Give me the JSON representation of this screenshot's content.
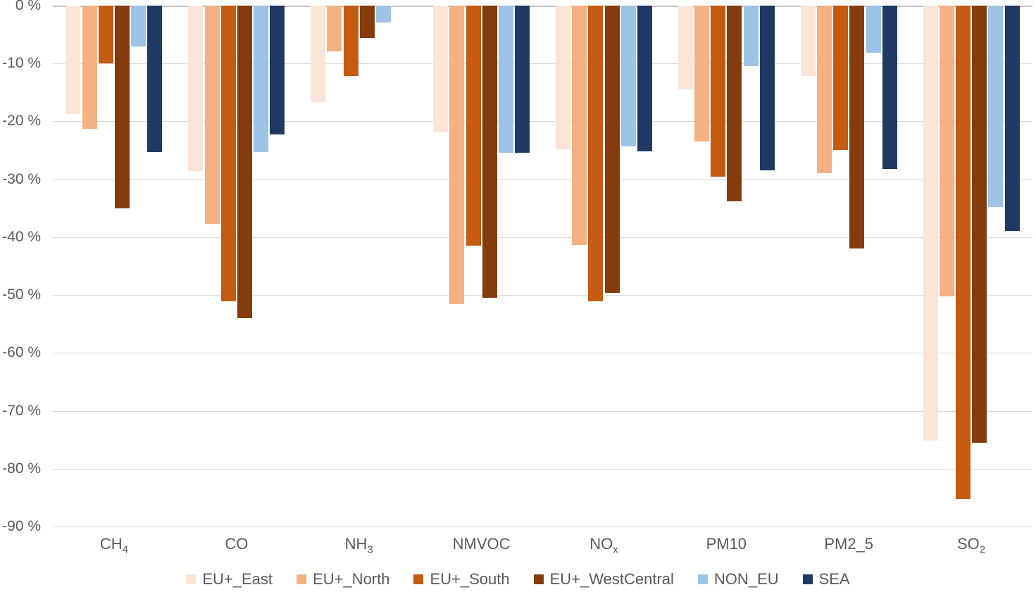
{
  "chart_data": {
    "type": "bar",
    "title": "",
    "xlabel": "",
    "ylabel": "",
    "ylim": [
      -90,
      0
    ],
    "grid": true,
    "legend_position": "bottom-center",
    "y_ticks": [
      {
        "value": 0,
        "label": "0 %"
      },
      {
        "value": -10,
        "label": "-10 %"
      },
      {
        "value": -20,
        "label": "-20 %"
      },
      {
        "value": -30,
        "label": "-30 %"
      },
      {
        "value": -40,
        "label": "-40 %"
      },
      {
        "value": -50,
        "label": "-50 %"
      },
      {
        "value": -60,
        "label": "-60 %"
      },
      {
        "value": -70,
        "label": "-70 %"
      },
      {
        "value": -80,
        "label": "-80 %"
      },
      {
        "value": -90,
        "label": "-90 %"
      }
    ],
    "categories": [
      {
        "label": "CH",
        "sub": "4"
      },
      {
        "label": "CO",
        "sub": ""
      },
      {
        "label": "NH",
        "sub": "3"
      },
      {
        "label": "NMVOC",
        "sub": ""
      },
      {
        "label": "NO",
        "sub": "x"
      },
      {
        "label": "PM10",
        "sub": ""
      },
      {
        "label": "PM2_5",
        "sub": ""
      },
      {
        "label": "SO",
        "sub": "2"
      }
    ],
    "series": [
      {
        "name": "EU+_East",
        "color": "#fbe5d6",
        "values": [
          -18.7,
          -28.6,
          -16.7,
          -21.9,
          -24.8,
          -14.5,
          -12.2,
          -75.2
        ]
      },
      {
        "name": "EU+_North",
        "color": "#f4b183",
        "values": [
          -21.3,
          -37.7,
          -7.9,
          -51.6,
          -41.4,
          -23.5,
          -28.9,
          -50.2
        ]
      },
      {
        "name": "EU+_South",
        "color": "#c55a11",
        "values": [
          -10.0,
          -51.1,
          -12.2,
          -41.5,
          -51.1,
          -29.5,
          -24.9,
          -85.2
        ]
      },
      {
        "name": "EU+_WestCentral",
        "color": "#843c0c",
        "values": [
          -35.0,
          -54.0,
          -5.6,
          -50.5,
          -49.6,
          -33.8,
          -42.0,
          -75.5
        ]
      },
      {
        "name": "NON_EU",
        "color": "#9dc3e6",
        "values": [
          -7.1,
          -25.3,
          -2.9,
          -25.4,
          -24.3,
          -10.4,
          -8.1,
          -34.8
        ]
      },
      {
        "name": "SEA",
        "color": "#1f3864",
        "values": [
          -25.3,
          -22.2,
          0.0,
          -25.4,
          -25.2,
          -28.4,
          -28.2,
          -38.9
        ]
      }
    ],
    "colors": {
      "gridline": "#d9d9d9",
      "zero_line": "#bfbfbf",
      "axis_text": "#595959",
      "background": "#ffffff"
    }
  }
}
